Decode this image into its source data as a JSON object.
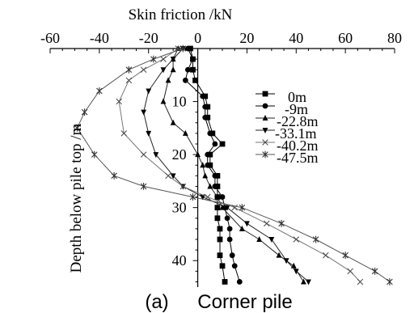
{
  "chart_data": {
    "type": "line",
    "title": "Skin friction /kN",
    "xlabel": "Skin friction /kN",
    "ylabel": "Depth below pile top /m",
    "xlim": [
      -60,
      80
    ],
    "ylim": [
      45,
      0
    ],
    "x_ticks": [
      -60,
      -40,
      -20,
      0,
      20,
      40,
      60,
      80
    ],
    "y_ticks": [
      10,
      20,
      30,
      40
    ],
    "legend_position": "right",
    "panel_label": "(a)",
    "caption": "Corner pile",
    "series": [
      {
        "name": "0m",
        "marker": "square",
        "points": [
          [
            -3,
            0
          ],
          [
            -2,
            2
          ],
          [
            -2,
            4
          ],
          [
            -1,
            6
          ],
          [
            3,
            9
          ],
          [
            4,
            11
          ],
          [
            4,
            13
          ],
          [
            6,
            16
          ],
          [
            10,
            18
          ],
          [
            5,
            20
          ],
          [
            5,
            22
          ],
          [
            8,
            24
          ],
          [
            8,
            26
          ],
          [
            8,
            28
          ],
          [
            8,
            30
          ],
          [
            8,
            32
          ],
          [
            9,
            34
          ],
          [
            9,
            36
          ],
          [
            9,
            39
          ],
          [
            10,
            41
          ],
          [
            11,
            44
          ]
        ]
      },
      {
        "name": "-9m",
        "marker": "circle",
        "points": [
          [
            -4,
            0
          ],
          [
            -2,
            2
          ],
          [
            -4,
            4
          ],
          [
            -5,
            6
          ],
          [
            2,
            9
          ],
          [
            3,
            11
          ],
          [
            3,
            13
          ],
          [
            5,
            16
          ],
          [
            7,
            18
          ],
          [
            4,
            20
          ],
          [
            4,
            22
          ],
          [
            7,
            24
          ],
          [
            7,
            26
          ],
          [
            10,
            28
          ],
          [
            11,
            30
          ],
          [
            12,
            32
          ],
          [
            13,
            34
          ],
          [
            13,
            36
          ],
          [
            14,
            39
          ],
          [
            15,
            41
          ],
          [
            17,
            44
          ]
        ]
      },
      {
        "name": "-22.8m",
        "marker": "triangle",
        "points": [
          [
            -8,
            0
          ],
          [
            -10,
            2
          ],
          [
            -10,
            4
          ],
          [
            -12,
            6
          ],
          [
            -14,
            10
          ],
          [
            -10,
            14
          ],
          [
            -5,
            16
          ],
          [
            0,
            20
          ],
          [
            2,
            22
          ],
          [
            3,
            24
          ],
          [
            5,
            26
          ],
          [
            8,
            28
          ],
          [
            10,
            30
          ],
          [
            18,
            34
          ],
          [
            25,
            36
          ],
          [
            33,
            39
          ],
          [
            39,
            41
          ],
          [
            43,
            44
          ]
        ]
      },
      {
        "name": "-33.1m",
        "marker": "triangle-down",
        "points": [
          [
            -6,
            0
          ],
          [
            -10,
            2
          ],
          [
            -14,
            4
          ],
          [
            -20,
            8
          ],
          [
            -22,
            12
          ],
          [
            -20,
            16
          ],
          [
            -17,
            20
          ],
          [
            -10,
            24
          ],
          [
            -6,
            26
          ],
          [
            2,
            28
          ],
          [
            12,
            30
          ],
          [
            20,
            33
          ],
          [
            30,
            36
          ],
          [
            36,
            40
          ],
          [
            40,
            42
          ],
          [
            45,
            44
          ]
        ]
      },
      {
        "name": "-40.2m",
        "marker": "x",
        "points": [
          [
            -8,
            0
          ],
          [
            -14,
            2
          ],
          [
            -22,
            4
          ],
          [
            -28,
            6
          ],
          [
            -32,
            10
          ],
          [
            -30,
            16
          ],
          [
            -22,
            20
          ],
          [
            -12,
            24
          ],
          [
            -6,
            26
          ],
          [
            4,
            28
          ],
          [
            15,
            30
          ],
          [
            28,
            33
          ],
          [
            40,
            36
          ],
          [
            52,
            39
          ],
          [
            62,
            42
          ],
          [
            66,
            44
          ]
        ]
      },
      {
        "name": "-47.5m",
        "marker": "asterisk",
        "points": [
          [
            -6,
            0
          ],
          [
            -18,
            2
          ],
          [
            -28,
            4
          ],
          [
            -40,
            8
          ],
          [
            -46,
            12
          ],
          [
            -49,
            15
          ],
          [
            -42,
            20
          ],
          [
            -34,
            24
          ],
          [
            -22,
            26
          ],
          [
            -2,
            28
          ],
          [
            18,
            30
          ],
          [
            34,
            33
          ],
          [
            48,
            36
          ],
          [
            60,
            39
          ],
          [
            72,
            42
          ],
          [
            78,
            44
          ]
        ]
      }
    ]
  }
}
